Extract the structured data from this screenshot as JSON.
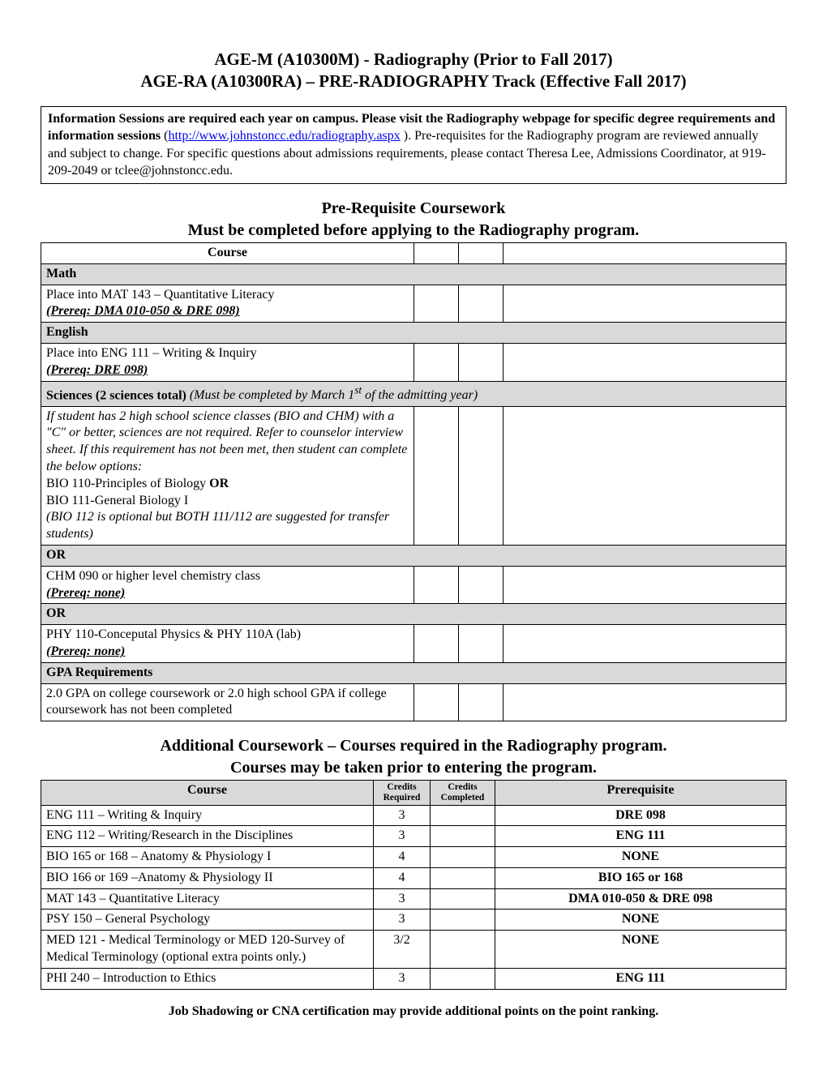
{
  "title": {
    "line1": "AGE-M (A10300M) - Radiography (Prior to Fall 2017)",
    "line2": "AGE-RA (A10300RA) – PRE-RADIOGRAPHY Track (Effective Fall 2017)"
  },
  "info": {
    "bold1": "Information Sessions are required each year on campus. Please visit the Radiography webpage for specific degree requirements and information sessions",
    "link_text": "http://www.johnstoncc.edu/radiography.aspx",
    "rest": "Pre-requisites for the Radiography program are reviewed annually and subject to change. For specific questions about admissions requirements, please contact Theresa Lee, Admissions Coordinator, at 919-209-2049 or tclee@johnstoncc.edu."
  },
  "prereq": {
    "heading1": "Pre-Requisite Coursework",
    "heading2": "Must be completed before applying to the Radiography program.",
    "header_course": "Course",
    "math_label": "Math",
    "math_row": "Place into MAT 143 – Quantitative Literacy",
    "math_prereq": "(Prereq: DMA 010-050 & DRE 098)",
    "english_label": "English",
    "english_row": "Place into ENG 111 – Writing & Inquiry",
    "english_prereq": "(Prereq: DRE 098)",
    "sciences_label": "Sciences (2 sciences total)",
    "sciences_note": "(Must be completed by March 1",
    "sciences_note2": " of the admitting year)",
    "sci_intro1": "If student has 2 high school science classes (BIO and CHM) with a \"C\" or better, sciences are not required. Refer to counselor interview sheet. If this requirement has not been met, then student can complete the below options:",
    "sci_bio110": "BIO 110-Principles of Biology ",
    "sci_or_inline": "OR",
    "sci_bio111": "BIO 111-General Biology I",
    "sci_bio_note": "(BIO 112 is optional but BOTH 111/112 are suggested for transfer students)",
    "or_label": "OR",
    "chm_row": "CHM 090 or higher level chemistry class",
    "chm_prereq": " (Prereq: none)",
    "phy_row": "PHY 110-Conceputal Physics & PHY 110A (lab)",
    "phy_prereq": "(Prereq: none)",
    "gpa_label": "GPA Requirements",
    "gpa_row": "2.0 GPA on college coursework or 2.0 high school GPA if college coursework has not been completed"
  },
  "additional": {
    "heading1": "Additional Coursework – Courses required in the Radiography program.",
    "heading2": "Courses may be taken prior to entering the program.",
    "h_course": "Course",
    "h_credits_req": "Credits Required",
    "h_credits_comp": "Credits Completed",
    "h_prereq": "Prerequisite",
    "rows": [
      {
        "course": "ENG 111 – Writing & Inquiry",
        "credits": "3",
        "prereq": "DRE 098"
      },
      {
        "course": "ENG 112 – Writing/Research in the Disciplines",
        "credits": "3",
        "prereq": "ENG 111"
      },
      {
        "course": "BIO 165 or 168 – Anatomy & Physiology I",
        "credits": "4",
        "prereq": "NONE"
      },
      {
        "course": "BIO 166 or 169 –Anatomy & Physiology II",
        "credits": "4",
        "prereq": "BIO 165 or 168"
      },
      {
        "course": "MAT 143 – Quantitative Literacy",
        "credits": "3",
        "prereq": "DMA 010-050 & DRE 098"
      },
      {
        "course": "PSY 150 – General Psychology",
        "credits": "3",
        "prereq": "NONE"
      },
      {
        "course": "MED 121 - Medical Terminology or MED 120-Survey of Medical Terminology (optional extra points only.)",
        "credits": "3/2",
        "prereq": "NONE"
      },
      {
        "course": "PHI 240 – Introduction to Ethics",
        "credits": "3",
        "prereq": "ENG 111"
      }
    ]
  },
  "footer": "Job Shadowing or CNA certification may provide additional points on the point ranking."
}
